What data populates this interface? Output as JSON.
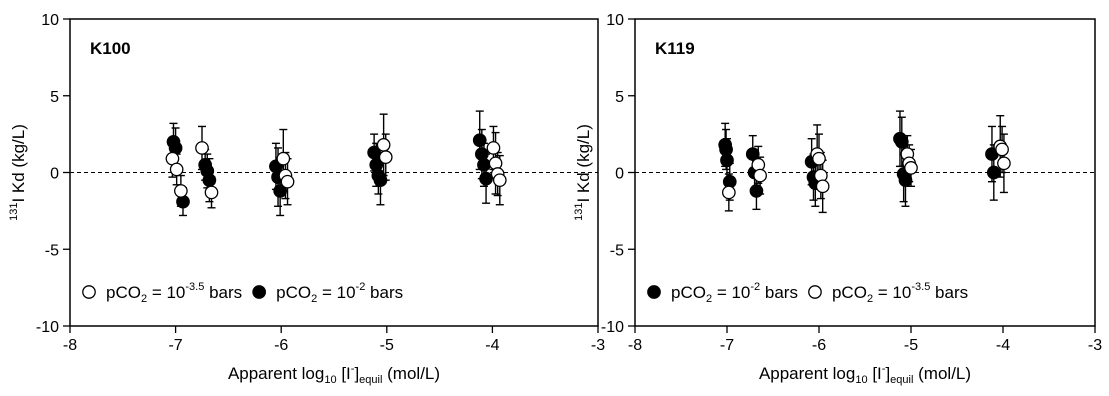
{
  "chart_data": [
    {
      "type": "scatter",
      "panel_label": "K100",
      "xlabel": {
        "main": "Apparent log",
        "sub1": "10",
        "mid": " [I",
        "sup": "-",
        "mid2": "]",
        "sub2": "equil",
        "tail": " (mol/L)"
      },
      "ylabel": {
        "sup": "131",
        "main": "I Kd (kg/L)"
      },
      "xlim": [
        -8,
        -3
      ],
      "ylim": [
        -10,
        10
      ],
      "xticks": [
        -8,
        -7,
        -6,
        -5,
        -4,
        -3
      ],
      "yticks": [
        -10,
        -5,
        0,
        5,
        10
      ],
      "reference_line": 0,
      "grid": false,
      "legend_position": "bottom-left",
      "legend": [
        {
          "marker": "open",
          "text": "pCO",
          "sub": "2",
          "eq": " = 10",
          "sup": "-3.5",
          "unit": " bars"
        },
        {
          "marker": "filled",
          "text": "pCO",
          "sub": "2",
          "eq": " = 10",
          "sup": "-2",
          "unit": " bars"
        }
      ],
      "series": [
        {
          "marker": "filled",
          "points": [
            {
              "x": -7.02,
              "y": 2.0,
              "err": 1.2
            },
            {
              "x": -7.0,
              "y": 1.6,
              "err": 1.3
            },
            {
              "x": -6.93,
              "y": -1.9,
              "err": 0.9
            },
            {
              "x": -6.72,
              "y": 0.5,
              "err": 1.0
            },
            {
              "x": -6.7,
              "y": 0.1,
              "err": 1.1
            },
            {
              "x": -6.68,
              "y": -0.5,
              "err": 1.4
            },
            {
              "x": -6.05,
              "y": 0.4,
              "err": 1.5
            },
            {
              "x": -6.03,
              "y": -0.3,
              "err": 1.9
            },
            {
              "x": -6.01,
              "y": -1.2,
              "err": 1.6
            },
            {
              "x": -5.12,
              "y": 1.3,
              "err": 1.2
            },
            {
              "x": -5.1,
              "y": 0.5,
              "err": 1.4
            },
            {
              "x": -5.08,
              "y": -0.2,
              "err": 1.2
            },
            {
              "x": -5.06,
              "y": -0.5,
              "err": 1.6
            },
            {
              "x": -4.12,
              "y": 2.1,
              "err": 1.9
            },
            {
              "x": -4.1,
              "y": 1.2,
              "err": 1.6
            },
            {
              "x": -4.08,
              "y": 0.5,
              "err": 1.4
            },
            {
              "x": -4.06,
              "y": -0.4,
              "err": 1.6
            }
          ]
        },
        {
          "marker": "open",
          "points": [
            {
              "x": -7.03,
              "y": 0.9,
              "err": 1.2
            },
            {
              "x": -6.99,
              "y": 0.2,
              "err": 1.0
            },
            {
              "x": -6.95,
              "y": -1.2,
              "err": 1.0
            },
            {
              "x": -6.75,
              "y": 1.6,
              "err": 1.4
            },
            {
              "x": -6.66,
              "y": -1.3,
              "err": 1.0
            },
            {
              "x": -5.98,
              "y": 0.9,
              "err": 1.9
            },
            {
              "x": -5.96,
              "y": -0.2,
              "err": 1.5
            },
            {
              "x": -5.94,
              "y": -0.6,
              "err": 1.5
            },
            {
              "x": -5.03,
              "y": 1.8,
              "err": 2.0
            },
            {
              "x": -5.01,
              "y": 1.0,
              "err": 1.5
            },
            {
              "x": -3.99,
              "y": 1.6,
              "err": 1.4
            },
            {
              "x": -3.97,
              "y": 0.6,
              "err": 2.0
            },
            {
              "x": -3.95,
              "y": -0.1,
              "err": 1.4
            },
            {
              "x": -3.93,
              "y": -0.5,
              "err": 1.6
            }
          ]
        }
      ]
    },
    {
      "type": "scatter",
      "panel_label": "K119",
      "xlabel": {
        "main": "Apparent log",
        "sub1": "10",
        "mid": " [I",
        "sup": "-",
        "mid2": "]",
        "sub2": "equil",
        "tail": " (mol/L)"
      },
      "ylabel": {
        "sup": "131",
        "main": "I Kd (kg/L)"
      },
      "xlim": [
        -8,
        -3
      ],
      "ylim": [
        -10,
        10
      ],
      "xticks": [
        -8,
        -7,
        -6,
        -5,
        -4,
        -3
      ],
      "yticks": [
        -10,
        -5,
        0,
        5,
        10
      ],
      "reference_line": 0,
      "grid": false,
      "legend_position": "bottom-left",
      "legend": [
        {
          "marker": "filled",
          "text": "pCO",
          "sub": "2",
          "eq": " = 10",
          "sup": "-2",
          "unit": " bars"
        },
        {
          "marker": "open",
          "text": "pCO",
          "sub": "2",
          "eq": " = 10",
          "sup": "-3.5",
          "unit": " bars"
        }
      ],
      "series": [
        {
          "marker": "filled",
          "points": [
            {
              "x": -7.02,
              "y": 1.8,
              "err": 1.4
            },
            {
              "x": -7.01,
              "y": 1.5,
              "err": 1.3
            },
            {
              "x": -7.0,
              "y": 0.8,
              "err": 1.4
            },
            {
              "x": -6.97,
              "y": -0.6,
              "err": 1.2
            },
            {
              "x": -6.72,
              "y": 1.2,
              "err": 1.2
            },
            {
              "x": -6.7,
              "y": 0.0,
              "err": 1.4
            },
            {
              "x": -6.68,
              "y": -1.2,
              "err": 1.2
            },
            {
              "x": -6.08,
              "y": 0.7,
              "err": 1.5
            },
            {
              "x": -6.06,
              "y": -0.3,
              "err": 1.5
            },
            {
              "x": -6.04,
              "y": -0.7,
              "err": 1.5
            },
            {
              "x": -5.12,
              "y": 2.2,
              "err": 1.8
            },
            {
              "x": -5.1,
              "y": 2.0,
              "err": 1.6
            },
            {
              "x": -5.08,
              "y": -0.1,
              "err": 1.8
            },
            {
              "x": -5.06,
              "y": -0.5,
              "err": 1.7
            },
            {
              "x": -4.12,
              "y": 1.2,
              "err": 1.8
            },
            {
              "x": -4.1,
              "y": 0.0,
              "err": 1.8
            }
          ]
        },
        {
          "marker": "open",
          "points": [
            {
              "x": -6.98,
              "y": -1.3,
              "err": 1.2
            },
            {
              "x": -6.66,
              "y": 0.5,
              "err": 1.2
            },
            {
              "x": -6.64,
              "y": -0.2,
              "err": 1.2
            },
            {
              "x": -6.02,
              "y": 1.2,
              "err": 1.9
            },
            {
              "x": -6.0,
              "y": 0.9,
              "err": 1.6
            },
            {
              "x": -5.98,
              "y": -0.2,
              "err": 1.5
            },
            {
              "x": -5.96,
              "y": -0.9,
              "err": 1.7
            },
            {
              "x": -5.04,
              "y": 1.2,
              "err": 1.2
            },
            {
              "x": -5.02,
              "y": 0.6,
              "err": 1.2
            },
            {
              "x": -5.0,
              "y": 0.3,
              "err": 1.2
            },
            {
              "x": -4.03,
              "y": 1.7,
              "err": 2.0
            },
            {
              "x": -4.01,
              "y": 1.5,
              "err": 1.5
            },
            {
              "x": -3.99,
              "y": 0.6,
              "err": 1.9
            }
          ]
        }
      ]
    }
  ]
}
